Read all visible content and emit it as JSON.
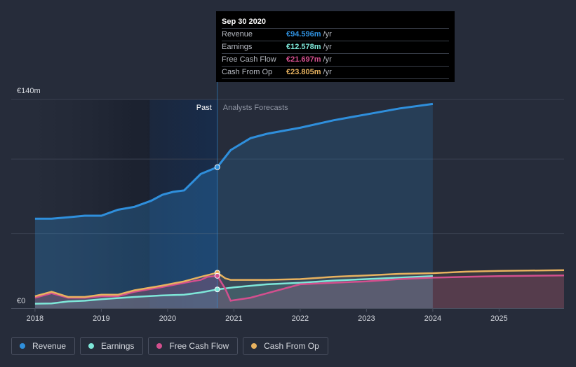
{
  "chart_data": {
    "type": "area",
    "currency_symbol": "€",
    "y_axis": {
      "top_label": "€140m",
      "bottom_label": "€0",
      "ylim": [
        0,
        140
      ]
    },
    "x_ticks": [
      "2018",
      "2019",
      "2020",
      "2021",
      "2022",
      "2023",
      "2024",
      "2025"
    ],
    "x_range": [
      2017.98,
      2025.98
    ],
    "past_end_x": 2020.75,
    "region_labels": {
      "past": "Past",
      "forecast": "Analysts Forecasts"
    },
    "series": [
      {
        "name": "Revenue",
        "color": "#2f8fdc",
        "past": [
          [
            2018.0,
            60
          ],
          [
            2018.25,
            60
          ],
          [
            2018.5,
            61
          ],
          [
            2018.75,
            62
          ],
          [
            2019.0,
            62
          ],
          [
            2019.25,
            66
          ],
          [
            2019.5,
            68
          ],
          [
            2019.75,
            72
          ],
          [
            2019.92,
            76
          ],
          [
            2020.08,
            78
          ],
          [
            2020.25,
            79
          ],
          [
            2020.5,
            90
          ],
          [
            2020.75,
            94.6
          ]
        ],
        "forecast": [
          [
            2020.75,
            94.6
          ],
          [
            2020.95,
            106
          ],
          [
            2021.25,
            114
          ],
          [
            2021.5,
            117
          ],
          [
            2022.0,
            121
          ],
          [
            2022.5,
            126
          ],
          [
            2023.0,
            130
          ],
          [
            2023.5,
            134
          ],
          [
            2024.0,
            137
          ]
        ]
      },
      {
        "name": "Earnings",
        "color": "#7ee7d9",
        "past": [
          [
            2018.0,
            3
          ],
          [
            2018.25,
            3.2
          ],
          [
            2018.5,
            4.5
          ],
          [
            2018.75,
            5
          ],
          [
            2019.0,
            6
          ],
          [
            2019.5,
            7.5
          ],
          [
            2019.9,
            8.5
          ],
          [
            2020.25,
            9
          ],
          [
            2020.5,
            10.5
          ],
          [
            2020.75,
            12.578
          ]
        ],
        "forecast": [
          [
            2020.75,
            12.578
          ],
          [
            2021.0,
            14
          ],
          [
            2021.5,
            16
          ],
          [
            2022.0,
            17
          ],
          [
            2022.5,
            18.5
          ],
          [
            2023.0,
            19.5
          ],
          [
            2023.5,
            20.5
          ],
          [
            2024.0,
            21.5
          ]
        ]
      },
      {
        "name": "Free Cash Flow",
        "color": "#d34f8e",
        "past": [
          [
            2018.0,
            7
          ],
          [
            2018.25,
            10
          ],
          [
            2018.5,
            7
          ],
          [
            2018.75,
            7
          ],
          [
            2019.0,
            8
          ],
          [
            2019.25,
            8
          ],
          [
            2019.5,
            11
          ],
          [
            2019.9,
            14
          ],
          [
            2020.25,
            17
          ],
          [
            2020.5,
            19
          ],
          [
            2020.6,
            21
          ],
          [
            2020.75,
            21.697
          ],
          [
            2020.87,
            13
          ],
          [
            2020.95,
            5
          ],
          [
            2021.25,
            7
          ],
          [
            2021.5,
            10
          ],
          [
            2022.0,
            16
          ],
          [
            2022.5,
            17
          ],
          [
            2023.0,
            18
          ],
          [
            2023.5,
            19.5
          ],
          [
            2024.0,
            20.5
          ],
          [
            2024.5,
            21
          ],
          [
            2025.0,
            21.5
          ],
          [
            2025.98,
            22
          ]
        ]
      },
      {
        "name": "Cash From Op",
        "color": "#e8b25f",
        "past": [
          [
            2018.0,
            8
          ],
          [
            2018.25,
            11
          ],
          [
            2018.5,
            7.5
          ],
          [
            2018.75,
            7.5
          ],
          [
            2019.0,
            9
          ],
          [
            2019.25,
            9
          ],
          [
            2019.5,
            12
          ],
          [
            2019.9,
            15
          ],
          [
            2020.25,
            18
          ],
          [
            2020.5,
            21
          ],
          [
            2020.75,
            23.805
          ],
          [
            2020.87,
            20
          ],
          [
            2020.95,
            19
          ],
          [
            2021.25,
            19
          ],
          [
            2021.5,
            19
          ],
          [
            2022.0,
            19.5
          ],
          [
            2022.5,
            21
          ],
          [
            2023.0,
            22
          ],
          [
            2023.5,
            23
          ],
          [
            2024.0,
            23.5
          ],
          [
            2024.5,
            24.5
          ],
          [
            2025.0,
            25
          ],
          [
            2025.98,
            25.5
          ]
        ]
      }
    ],
    "tooltip": {
      "date": "Sep 30 2020",
      "unit": "/yr",
      "rows": [
        {
          "label": "Revenue",
          "value": "€94.596m",
          "color": "#2f8fdc"
        },
        {
          "label": "Earnings",
          "value": "€12.578m",
          "color": "#7ee7d9"
        },
        {
          "label": "Free Cash Flow",
          "value": "€21.697m",
          "color": "#d34f8e"
        },
        {
          "label": "Cash From Op",
          "value": "€23.805m",
          "color": "#e8b25f"
        }
      ]
    }
  },
  "legend": [
    {
      "label": "Revenue",
      "color": "#2f8fdc"
    },
    {
      "label": "Earnings",
      "color": "#7ee7d9"
    },
    {
      "label": "Free Cash Flow",
      "color": "#d34f8e"
    },
    {
      "label": "Cash From Op",
      "color": "#e8b25f"
    }
  ]
}
